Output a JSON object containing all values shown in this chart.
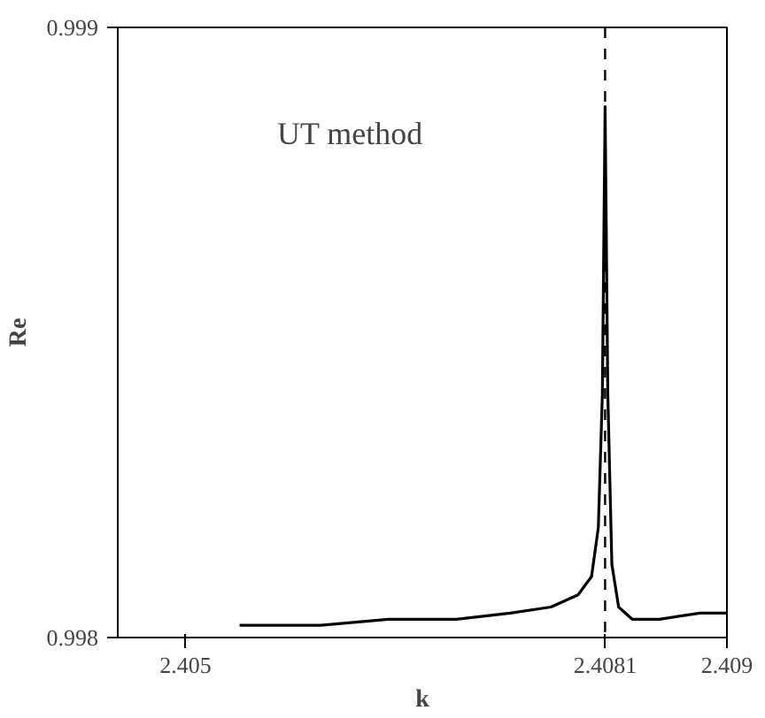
{
  "chart_data": {
    "type": "line",
    "xlabel": "k",
    "ylabel": "Re",
    "annotations": [
      "UT method"
    ],
    "x": [
      2.4054,
      2.406,
      2.4065,
      2.407,
      2.4074,
      2.4077,
      2.4079,
      2.408,
      2.40805,
      2.40808,
      2.4081,
      2.40812,
      2.40815,
      2.4082,
      2.4083,
      2.4085,
      2.4088,
      2.409
    ],
    "series": [
      {
        "color": "#000000",
        "values": [
          0.99802,
          0.99802,
          0.99803,
          0.99803,
          0.99804,
          0.99805,
          0.99807,
          0.9981,
          0.99818,
          0.9984,
          0.99887,
          0.9984,
          0.99812,
          0.99805,
          0.99803,
          0.99803,
          0.99804,
          0.99804
        ]
      }
    ],
    "xlim": [
      2.4045,
      2.409
    ],
    "ylim": [
      0.998,
      0.999
    ],
    "xticks": [
      2.405,
      2.4081,
      2.409
    ],
    "yticks": [
      0.998,
      0.999
    ],
    "ref_lines": [
      {
        "axis": "x",
        "value": 2.4081,
        "line_style": "dashed",
        "color": "#000000"
      }
    ],
    "grid": false,
    "marker": "none",
    "line_style": "solid"
  }
}
